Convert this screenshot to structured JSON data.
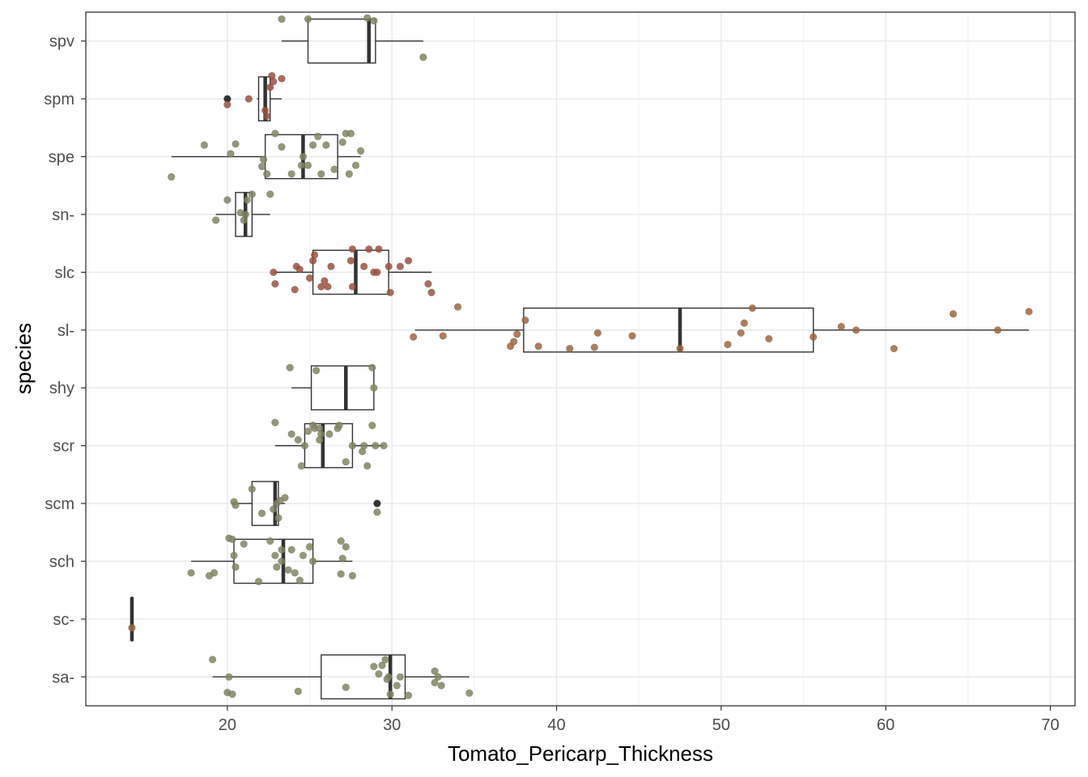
{
  "chart_data": {
    "type": "boxplot",
    "orientation": "horizontal",
    "xlabel": "Tomato_Pericarp_Thickness",
    "ylabel": "species",
    "xlim": [
      11.4,
      71.5
    ],
    "xticks": [
      20,
      30,
      40,
      50,
      60,
      70
    ],
    "grid": true,
    "legend": "none",
    "categories": [
      "sa-",
      "sc-",
      "sch",
      "scm",
      "scr",
      "shy",
      "sl-",
      "slc",
      "sn-",
      "spe",
      "spm",
      "spv"
    ],
    "boxes": [
      {
        "species": "sa-",
        "whisker_low": 19.1,
        "q1": 25.7,
        "median": 29.9,
        "q3": 30.8,
        "whisker_high": 34.7,
        "points": [
          [
            19.1,
            0.3
          ],
          [
            20.1,
            0.0
          ],
          [
            20.0,
            -0.27
          ],
          [
            20.3,
            -0.3
          ],
          [
            24.3,
            -0.25
          ],
          [
            27.2,
            -0.18
          ],
          [
            28.9,
            0.18
          ],
          [
            29.4,
            0.2
          ],
          [
            29.6,
            0.3
          ],
          [
            29.8,
            0.0
          ],
          [
            29.7,
            -0.04
          ],
          [
            29.9,
            -0.3
          ],
          [
            30.5,
            0.0
          ],
          [
            30.3,
            -0.15
          ],
          [
            31.0,
            -0.32
          ],
          [
            32.6,
            0.1
          ],
          [
            32.8,
            0.0
          ],
          [
            32.6,
            -0.1
          ],
          [
            33.0,
            -0.15
          ],
          [
            34.7,
            -0.28
          ],
          [
            29.2,
            0.05
          ]
        ]
      },
      {
        "species": "sc-",
        "whisker_low": 14.2,
        "q1": 14.2,
        "median": 14.2,
        "q3": 14.2,
        "whisker_high": 14.2,
        "points": [
          [
            14.2,
            -0.15
          ]
        ]
      },
      {
        "species": "sch",
        "whisker_low": 17.8,
        "q1": 20.4,
        "median": 23.4,
        "q3": 25.2,
        "whisker_high": 27.6,
        "points": [
          [
            17.8,
            -0.2
          ],
          [
            18.9,
            -0.25
          ],
          [
            19.2,
            -0.2
          ],
          [
            20.1,
            0.4
          ],
          [
            20.3,
            0.38
          ],
          [
            20.4,
            0.1
          ],
          [
            20.5,
            -0.1
          ],
          [
            21.0,
            0.3
          ],
          [
            21.9,
            -0.35
          ],
          [
            22.6,
            0.35
          ],
          [
            22.9,
            0.1
          ],
          [
            23.0,
            -0.1
          ],
          [
            23.3,
            0.2
          ],
          [
            23.3,
            0.0
          ],
          [
            23.7,
            -0.15
          ],
          [
            23.9,
            0.2
          ],
          [
            24.1,
            -0.2
          ],
          [
            24.4,
            -0.33
          ],
          [
            24.6,
            0.1
          ],
          [
            25.0,
            0.25
          ],
          [
            25.2,
            0.0
          ],
          [
            26.9,
            0.35
          ],
          [
            26.9,
            -0.22
          ],
          [
            27.0,
            0.05
          ],
          [
            27.6,
            -0.25
          ],
          [
            27.2,
            0.25
          ]
        ]
      },
      {
        "species": "scm",
        "whisker_low": 20.3,
        "q1": 21.5,
        "median": 22.9,
        "q3": 23.1,
        "whisker_high": 23.5,
        "points": [
          [
            20.4,
            0.03
          ],
          [
            20.5,
            -0.03
          ],
          [
            21.5,
            0.25
          ],
          [
            22.1,
            -0.17
          ],
          [
            22.8,
            -0.1
          ],
          [
            23.0,
            0.0
          ],
          [
            23.1,
            -0.25
          ],
          [
            23.2,
            0.05
          ],
          [
            23.5,
            0.1
          ],
          [
            29.1,
            -0.15
          ]
        ],
        "outliers": [
          29.1
        ]
      },
      {
        "species": "scr",
        "whisker_low": 22.9,
        "q1": 24.7,
        "median": 25.8,
        "q3": 27.6,
        "whisker_high": 29.5,
        "points": [
          [
            22.9,
            0.4
          ],
          [
            23.9,
            0.2
          ],
          [
            24.3,
            0.1
          ],
          [
            24.5,
            -0.35
          ],
          [
            24.7,
            0.0
          ],
          [
            24.9,
            0.25
          ],
          [
            25.2,
            0.35
          ],
          [
            25.3,
            0.3
          ],
          [
            25.6,
            0.3
          ],
          [
            25.7,
            0.2
          ],
          [
            25.6,
            0.1
          ],
          [
            26.2,
            0.2
          ],
          [
            26.7,
            0.3
          ],
          [
            26.8,
            0.35
          ],
          [
            27.2,
            -0.28
          ],
          [
            28.2,
            -0.1
          ],
          [
            28.3,
            0.0
          ],
          [
            28.5,
            -0.35
          ],
          [
            28.8,
            0.35
          ],
          [
            29.0,
            0.0
          ],
          [
            29.5,
            0.0
          ],
          [
            27.6,
            0.0
          ]
        ]
      },
      {
        "species": "shy",
        "whisker_low": 23.9,
        "q1": 25.1,
        "median": 27.2,
        "q3": 28.9,
        "whisker_high": 28.9,
        "points": [
          [
            23.8,
            0.35
          ],
          [
            25.4,
            0.3
          ],
          [
            28.8,
            0.35
          ],
          [
            28.9,
            0.0
          ]
        ]
      },
      {
        "species": "sl-",
        "whisker_low": 31.4,
        "q1": 38.0,
        "median": 47.5,
        "q3": 55.6,
        "whisker_high": 68.7,
        "points": [
          [
            31.3,
            -0.12
          ],
          [
            33.1,
            -0.1
          ],
          [
            34.0,
            0.4
          ],
          [
            37.2,
            -0.28
          ],
          [
            37.4,
            -0.2
          ],
          [
            37.6,
            -0.07
          ],
          [
            38.1,
            0.17
          ],
          [
            38.9,
            -0.28
          ],
          [
            40.8,
            -0.32
          ],
          [
            42.3,
            -0.3
          ],
          [
            42.5,
            -0.05
          ],
          [
            44.6,
            -0.1
          ],
          [
            47.5,
            -0.32
          ],
          [
            50.4,
            -0.25
          ],
          [
            51.2,
            -0.05
          ],
          [
            51.4,
            0.12
          ],
          [
            51.9,
            0.38
          ],
          [
            52.9,
            -0.15
          ],
          [
            55.6,
            -0.12
          ],
          [
            57.3,
            0.06
          ],
          [
            58.2,
            0.0
          ],
          [
            60.5,
            -0.32
          ],
          [
            64.1,
            0.28
          ],
          [
            66.8,
            0.0
          ],
          [
            68.7,
            0.32
          ]
        ]
      },
      {
        "species": "slc",
        "whisker_low": 22.8,
        "q1": 25.2,
        "median": 27.8,
        "q3": 29.8,
        "whisker_high": 32.4,
        "points": [
          [
            22.8,
            0.0
          ],
          [
            22.9,
            -0.2
          ],
          [
            24.1,
            -0.3
          ],
          [
            24.2,
            0.1
          ],
          [
            24.4,
            0.05
          ],
          [
            25.0,
            -0.1
          ],
          [
            25.2,
            0.2
          ],
          [
            25.3,
            0.3
          ],
          [
            25.7,
            -0.25
          ],
          [
            25.9,
            -0.15
          ],
          [
            26.1,
            -0.25
          ],
          [
            26.3,
            0.1
          ],
          [
            27.5,
            0.2
          ],
          [
            27.6,
            0.4
          ],
          [
            27.6,
            -0.25
          ],
          [
            28.3,
            0.1
          ],
          [
            28.6,
            0.4
          ],
          [
            28.9,
            0.0
          ],
          [
            29.1,
            0.0
          ],
          [
            29.2,
            0.4
          ],
          [
            29.9,
            -0.35
          ],
          [
            29.8,
            0.1
          ],
          [
            30.5,
            0.1
          ],
          [
            31.0,
            0.2
          ],
          [
            32.4,
            -0.35
          ],
          [
            32.2,
            -0.2
          ]
        ]
      },
      {
        "species": "sn-",
        "whisker_low": 19.3,
        "q1": 20.5,
        "median": 21.1,
        "q3": 21.5,
        "whisker_high": 22.6,
        "points": [
          [
            19.3,
            -0.1
          ],
          [
            20.0,
            0.25
          ],
          [
            20.8,
            0.03
          ],
          [
            21.0,
            -0.1
          ],
          [
            21.1,
            0.0
          ],
          [
            21.2,
            0.25
          ],
          [
            21.5,
            0.35
          ],
          [
            22.6,
            0.35
          ]
        ]
      },
      {
        "species": "spe",
        "whisker_low": 16.6,
        "q1": 22.3,
        "median": 24.6,
        "q3": 26.7,
        "whisker_high": 28.1,
        "points": [
          [
            16.6,
            -0.35
          ],
          [
            18.6,
            0.2
          ],
          [
            20.2,
            0.05
          ],
          [
            20.5,
            0.22
          ],
          [
            22.1,
            -0.17
          ],
          [
            22.2,
            -0.05
          ],
          [
            22.4,
            -0.3
          ],
          [
            22.9,
            0.4
          ],
          [
            23.3,
            0.17
          ],
          [
            23.9,
            -0.3
          ],
          [
            24.5,
            -0.15
          ],
          [
            24.6,
            0.0
          ],
          [
            24.9,
            -0.15
          ],
          [
            25.2,
            0.2
          ],
          [
            25.5,
            0.35
          ],
          [
            25.7,
            -0.3
          ],
          [
            26.0,
            0.2
          ],
          [
            26.5,
            -0.22
          ],
          [
            27.0,
            0.25
          ],
          [
            27.2,
            0.4
          ],
          [
            27.4,
            -0.3
          ],
          [
            27.5,
            0.4
          ],
          [
            27.8,
            -0.15
          ],
          [
            28.1,
            0.1
          ]
        ]
      },
      {
        "species": "spm",
        "whisker_low": 21.8,
        "q1": 21.9,
        "median": 22.3,
        "q3": 22.6,
        "whisker_high": 23.3,
        "points": [
          [
            20.0,
            -0.1
          ],
          [
            21.3,
            0.0
          ],
          [
            22.3,
            -0.2
          ],
          [
            22.4,
            -0.3
          ],
          [
            22.6,
            0.2
          ],
          [
            22.7,
            0.4
          ],
          [
            22.8,
            0.3
          ],
          [
            23.3,
            0.35
          ]
        ],
        "outliers": [
          20.0
        ]
      },
      {
        "species": "spv",
        "whisker_low": 23.3,
        "q1": 24.9,
        "median": 28.6,
        "q3": 29.0,
        "whisker_high": 31.9,
        "points": [
          [
            23.3,
            0.38
          ],
          [
            24.9,
            0.38
          ],
          [
            28.5,
            0.4
          ],
          [
            28.9,
            0.35
          ],
          [
            31.9,
            -0.28
          ]
        ]
      }
    ]
  }
}
